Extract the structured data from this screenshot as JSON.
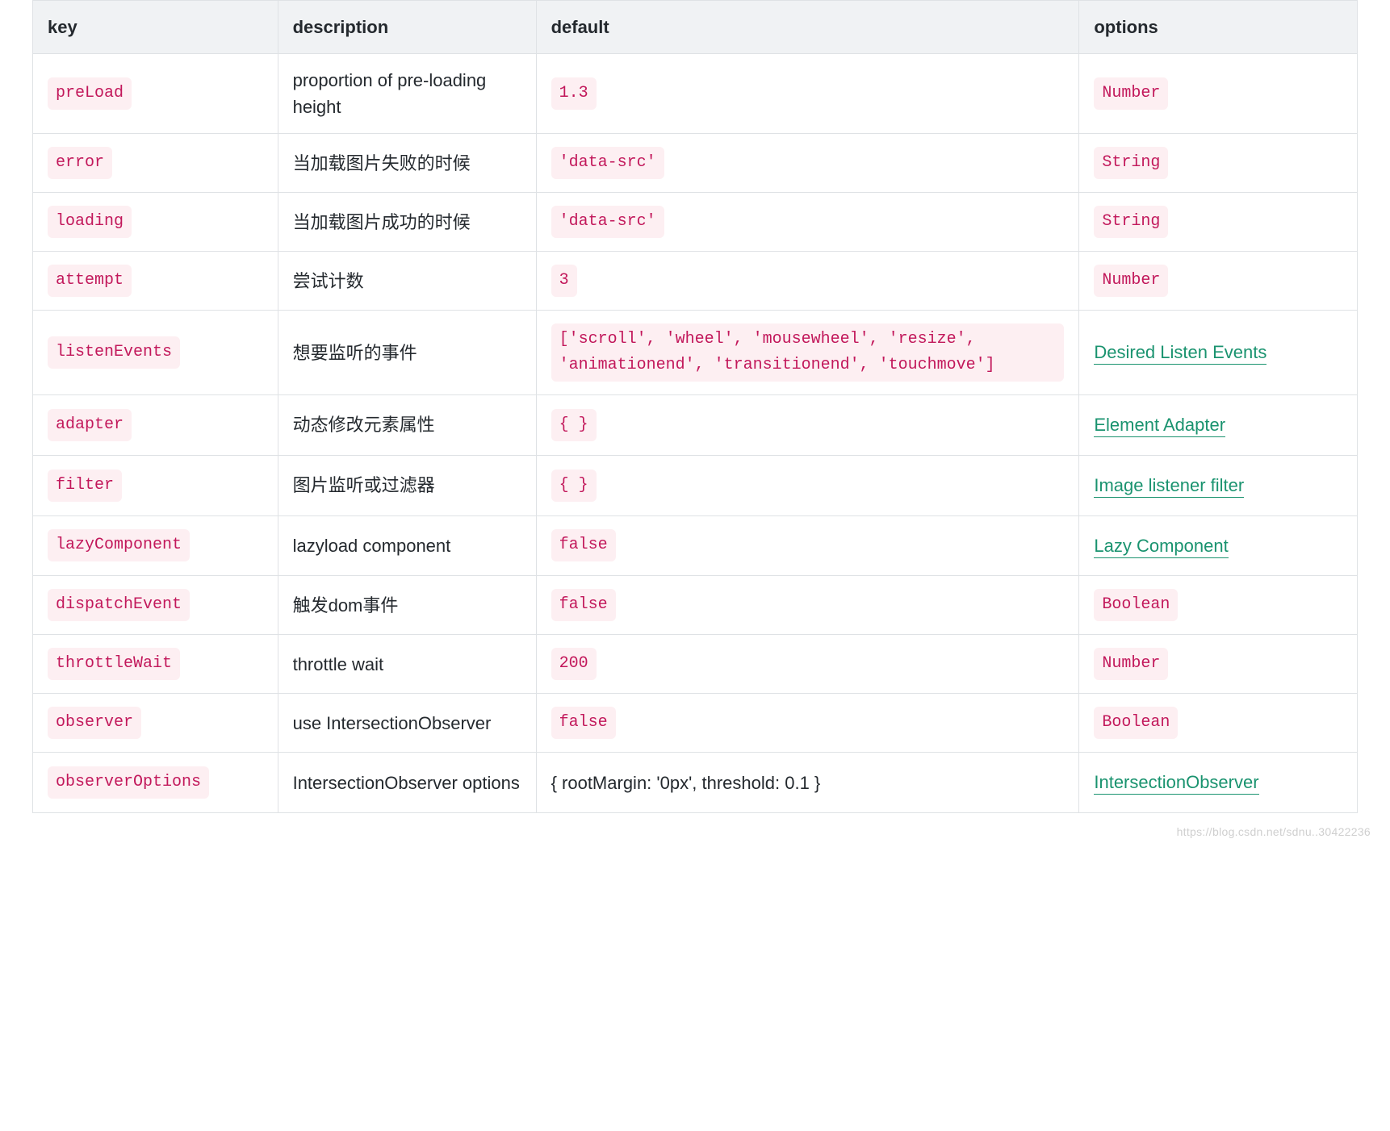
{
  "table": {
    "columns": [
      "key",
      "description",
      "default",
      "options"
    ],
    "rows": [
      {
        "key": "preLoad",
        "description": "proportion of pre-loading height",
        "default": {
          "type": "code",
          "text": "1.3"
        },
        "options": {
          "type": "code",
          "text": "Number"
        }
      },
      {
        "key": "error",
        "description": "当加载图片失败的时候",
        "default": {
          "type": "code",
          "text": "'data-src'"
        },
        "options": {
          "type": "code",
          "text": "String"
        }
      },
      {
        "key": "loading",
        "description": "当加载图片成功的时候",
        "default": {
          "type": "code",
          "text": "'data-src'"
        },
        "options": {
          "type": "code",
          "text": "String"
        }
      },
      {
        "key": "attempt",
        "description": "尝试计数",
        "default": {
          "type": "code",
          "text": "3"
        },
        "options": {
          "type": "code",
          "text": "Number"
        }
      },
      {
        "key": "listenEvents",
        "description": "想要监听的事件",
        "default": {
          "type": "code-multiline",
          "text": "['scroll', 'wheel', 'mousewheel', 'resize', 'animationend', 'transitionend', 'touchmove']"
        },
        "options": {
          "type": "link",
          "text": "Desired Listen Events"
        }
      },
      {
        "key": "adapter",
        "description": "动态修改元素属性",
        "default": {
          "type": "code",
          "text": "{ }"
        },
        "options": {
          "type": "link",
          "text": "Element Adapter"
        }
      },
      {
        "key": "filter",
        "description": "图片监听或过滤器",
        "default": {
          "type": "code",
          "text": "{ }"
        },
        "options": {
          "type": "link",
          "text": "Image listener filter"
        }
      },
      {
        "key": "lazyComponent",
        "description": "lazyload component",
        "default": {
          "type": "code",
          "text": "false"
        },
        "options": {
          "type": "link",
          "text": "Lazy Component"
        }
      },
      {
        "key": "dispatchEvent",
        "description": "触发dom事件",
        "default": {
          "type": "code",
          "text": "false"
        },
        "options": {
          "type": "code",
          "text": "Boolean"
        }
      },
      {
        "key": "throttleWait",
        "description": "throttle wait",
        "default": {
          "type": "code",
          "text": "200"
        },
        "options": {
          "type": "code",
          "text": "Number"
        }
      },
      {
        "key": "observer",
        "description": "use IntersectionObserver",
        "default": {
          "type": "code",
          "text": "false"
        },
        "options": {
          "type": "code",
          "text": "Boolean"
        }
      },
      {
        "key": "observerOptions",
        "description": "IntersectionObserver options",
        "default": {
          "type": "text",
          "text": "{ rootMargin: '0px', threshold: 0.1 }"
        },
        "options": {
          "type": "link",
          "text": "IntersectionObserver"
        }
      }
    ]
  },
  "style": {
    "code_bg": "#fdeff2",
    "code_color": "#c2185b",
    "link_color": "#1a936f",
    "border_color": "#dfe2e5",
    "header_bg": "#f0f2f4",
    "text_color": "#24292e",
    "background": "#ffffff",
    "font_size_base": 22,
    "code_font_size": 20
  },
  "watermark": "https://blog.csdn.net/sdnu..30422236"
}
